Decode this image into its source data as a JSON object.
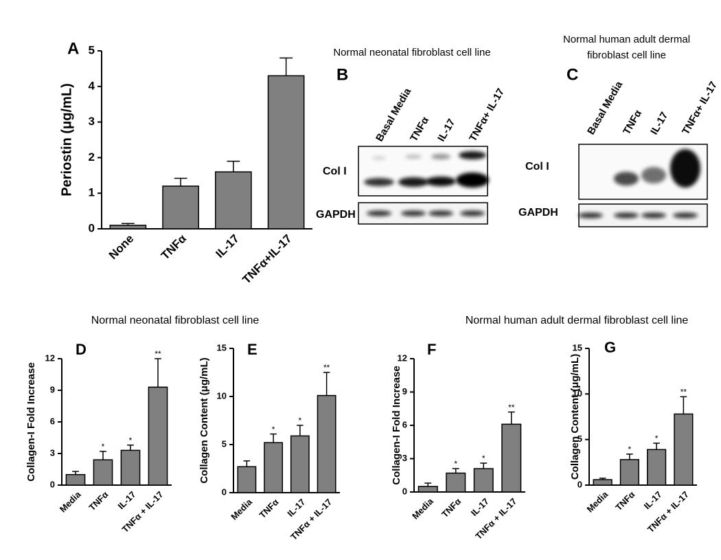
{
  "chart_data": [
    {
      "type": "bar",
      "title": "A",
      "y_label": "Periostin (μg/mL)",
      "categories": [
        "None",
        "TNFα",
        "IL-17",
        "TNFα+IL-17"
      ],
      "values": [
        0.1,
        1.2,
        1.6,
        4.3
      ],
      "errors": [
        0.05,
        0.22,
        0.3,
        0.5
      ],
      "color": "#808080",
      "ylim": [
        0,
        5
      ],
      "yticks": [
        0,
        1,
        2,
        3,
        4,
        5
      ]
    },
    {
      "type": "bar",
      "title": "D",
      "subtitle": "Normal neonatal fibroblast cell line",
      "y_label": "Collagen-I Fold Increase",
      "categories": [
        "Media",
        "TNFα",
        "IL-17",
        "TNFα + IL-17"
      ],
      "values": [
        1.0,
        2.4,
        3.3,
        9.3
      ],
      "errors": [
        0.3,
        0.8,
        0.5,
        2.7
      ],
      "annotations": [
        null,
        "*",
        "*",
        "**"
      ],
      "color": "#808080",
      "ylim": [
        0,
        12
      ],
      "yticks": [
        0,
        3,
        6,
        9,
        12
      ]
    },
    {
      "type": "bar",
      "title": "E",
      "y_label": "Collagen Content (μg/mL)",
      "categories": [
        "Media",
        "TNFα",
        "IL-17",
        "TNFα + IL-17"
      ],
      "values": [
        2.7,
        5.2,
        5.9,
        10.1
      ],
      "errors": [
        0.6,
        0.9,
        1.1,
        2.4
      ],
      "annotations": [
        null,
        "*",
        "*",
        "**"
      ],
      "color": "#808080",
      "ylim": [
        0,
        15
      ],
      "yticks": [
        0,
        5,
        10,
        15
      ]
    },
    {
      "type": "bar",
      "title": "F",
      "subtitle": "Normal human adult dermal fibroblast cell line",
      "y_label": "Collagen-I Fold Increase",
      "categories": [
        "Media",
        "TNFα",
        "IL-17",
        "TNFα + IL-17"
      ],
      "values": [
        0.5,
        1.7,
        2.1,
        6.1
      ],
      "errors": [
        0.3,
        0.4,
        0.5,
        1.1
      ],
      "annotations": [
        null,
        "*",
        "*",
        "**"
      ],
      "color": "#808080",
      "ylim": [
        0,
        12
      ],
      "yticks": [
        0,
        3,
        6,
        9,
        12
      ]
    },
    {
      "type": "bar",
      "title": "G",
      "y_label": "Collagen Content (μg/mL)",
      "categories": [
        "Media",
        "TNFα",
        "IL-17",
        "TNFα + IL-17"
      ],
      "values": [
        0.6,
        2.8,
        3.9,
        7.8
      ],
      "errors": [
        0.15,
        0.6,
        0.7,
        1.9
      ],
      "annotations": [
        null,
        "*",
        "*",
        "**"
      ],
      "color": "#808080",
      "ylim": [
        0,
        15
      ],
      "yticks": [
        0,
        5,
        10,
        15
      ]
    }
  ],
  "blots": [
    {
      "letter": "B",
      "title": "Normal neonatal fibroblast cell line",
      "lanes": [
        "Basal Media",
        "TNFα",
        "IL-17",
        "TNFα+ IL-17"
      ],
      "rows": [
        "Col I",
        "GAPDH"
      ]
    },
    {
      "letter": "C",
      "title": "Normal human adult dermal fibroblast cell line",
      "lanes": [
        "Basal Media",
        "TNFα",
        "IL-17",
        "TNFα+ IL-17"
      ],
      "rows": [
        "Col I",
        "GAPDH"
      ]
    }
  ]
}
